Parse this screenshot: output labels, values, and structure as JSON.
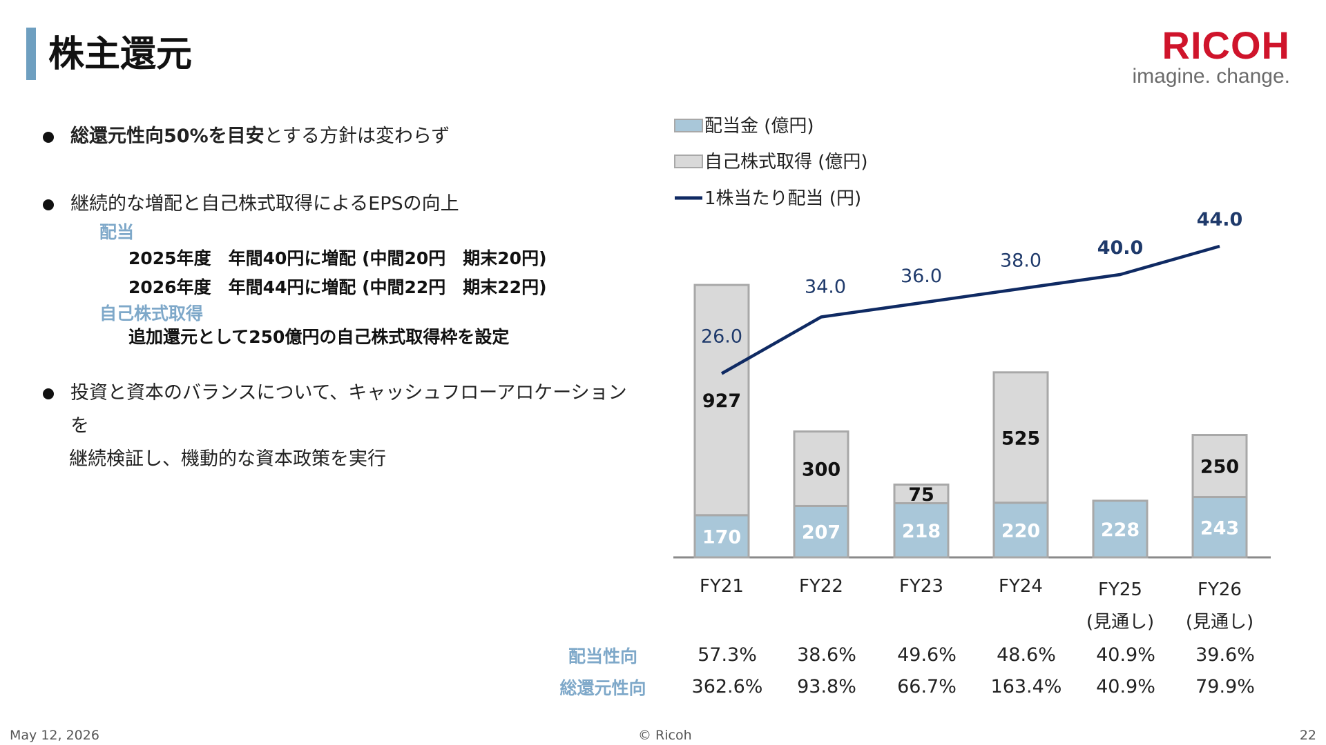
{
  "slide": {
    "title": "株主還元",
    "logo": {
      "word": "RICOH",
      "tagline": "imagine. change."
    },
    "footer": {
      "date": "May 12, 2026",
      "copyright": "© Ricoh",
      "page": "22"
    }
  },
  "bullets": {
    "b1_strong": "総還元性向50%を目安",
    "b1_rest": "とする方針は変わらず",
    "b2": "継続的な増配と自己株式取得によるEPSの向上",
    "dividend_heading": "配当",
    "dividend_line1": "2025年度　年間40円に増配 (中間20円　期末20円)",
    "dividend_line2": "2026年度　年間44円に増配 (中間22円　期末22円)",
    "buyback_heading": "自己株式取得",
    "buyback_line": "追加還元として250億円の自己株式取得枠を設定",
    "b3_line1": "投資と資本のバランスについて、キャッシュフローアロケーションを",
    "b3_line2": "継続検証し、機動的な資本政策を実行"
  },
  "chart_data": {
    "type": "bar",
    "stacked": true,
    "categories": [
      "FY21",
      "FY22",
      "FY23",
      "FY24",
      "FY25",
      "FY26"
    ],
    "category_notes": [
      "",
      "",
      "",
      "",
      "(見通し)",
      "(見通し)"
    ],
    "series": [
      {
        "name": "配当金 (億円)",
        "type": "bar",
        "color": "#a9c7d9",
        "values": [
          170,
          207,
          218,
          220,
          228,
          243
        ]
      },
      {
        "name": "自己株式取得 (億円)",
        "type": "bar",
        "color": "#d9d9d9",
        "values": [
          927,
          300,
          75,
          525,
          0,
          250
        ]
      },
      {
        "name": "1株当たり配当 (円)",
        "type": "line",
        "color": "#0f2a63",
        "values": [
          26.0,
          34.0,
          36.0,
          38.0,
          40.0,
          44.0
        ],
        "labels": [
          "26.0",
          "34.0",
          "36.0",
          "38.0",
          "40.0",
          "44.0"
        ],
        "bold_labels": [
          false,
          false,
          false,
          false,
          true,
          true
        ]
      }
    ],
    "legend_position": "top-left",
    "grid": false,
    "table_rows": [
      {
        "label": "配当性向",
        "values": [
          "57.3%",
          "38.6%",
          "49.6%",
          "48.6%",
          "40.9%",
          "39.6%"
        ]
      },
      {
        "label": "総還元性向",
        "values": [
          "362.6%",
          "93.8%",
          "66.7%",
          "163.4%",
          "40.9%",
          "79.9%"
        ]
      }
    ]
  }
}
